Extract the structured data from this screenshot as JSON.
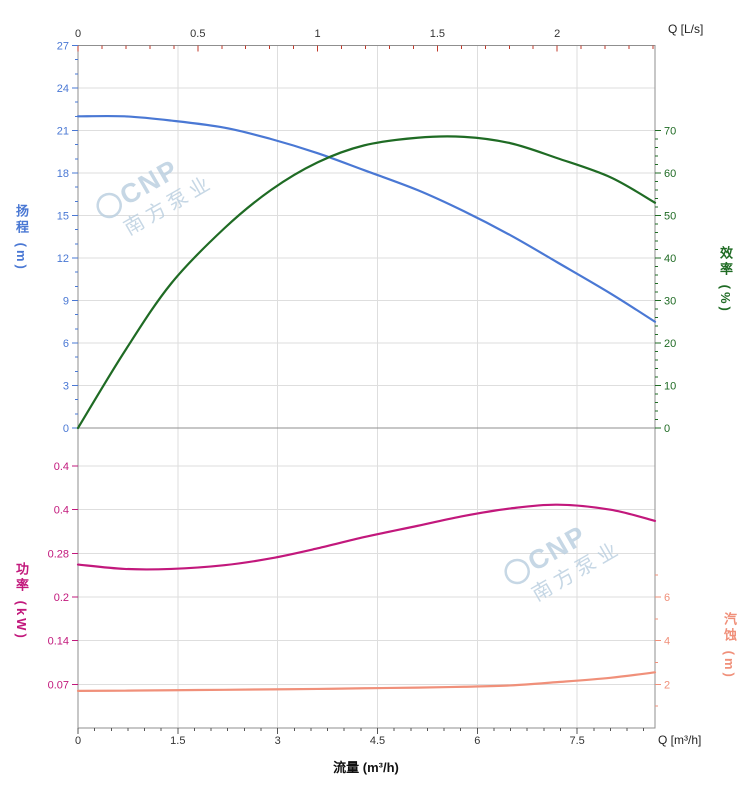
{
  "watermark": {
    "brand": "CNP",
    "name": "南方泵业"
  },
  "colors": {
    "head": "#4a78d4",
    "eff": "#1f6b24",
    "power": "#c2187c",
    "npsh": "#f0907a",
    "watermark": "#b9cedf",
    "grid": "#dedede",
    "axis": "#8f8f8f",
    "top_tick": "#c0392b",
    "bottom_tick": "#555555",
    "text": "#333333"
  },
  "axes": {
    "top": {
      "label": "Q [L/s]",
      "ticks": [
        0,
        0.5,
        1,
        1.5,
        2
      ]
    },
    "bottom": {
      "label": "Q [m³/h]",
      "title": "流量 (m³/h)",
      "ticks": [
        0,
        1.5,
        3,
        4.5,
        6,
        7.5
      ]
    },
    "head": {
      "title": "扬程 (m)",
      "ticks": [
        0,
        3,
        6,
        9,
        12,
        15,
        18,
        21,
        24,
        27
      ],
      "range": [
        0,
        27
      ]
    },
    "eff": {
      "title": "效率 (%)",
      "ticks": [
        0,
        10,
        20,
        30,
        40,
        50,
        60,
        70
      ],
      "range": [
        0,
        70
      ]
    },
    "power": {
      "title": "功率 (kW)",
      "grid": {
        "values": [
          0.42,
          0.35,
          0.28,
          0.21,
          0.14,
          0.07
        ],
        "labels": [
          "0.4",
          "0.4",
          "0.28",
          "0.2",
          "0.14",
          "0.07"
        ]
      },
      "range": [
        0,
        0.42
      ]
    },
    "npsh": {
      "title": "汽蚀 (m)",
      "ticks": [
        2,
        4,
        6
      ],
      "range": [
        0,
        12
      ]
    }
  },
  "chart_data": [
    {
      "type": "line",
      "xlabel": "流量 (m³/h)",
      "x_top_axis": "Q [L/s]",
      "xlim": [
        0,
        8.67
      ],
      "x": [
        0,
        0.7,
        1.4,
        2.2,
        2.9,
        3.6,
        4.3,
        5.1,
        5.8,
        6.5,
        7.2,
        8.0,
        8.67
      ],
      "series": [
        {
          "name": "扬程",
          "unit": "m",
          "axis": "left",
          "ylim": [
            0,
            27
          ],
          "color": "#4a78d4",
          "values": [
            22,
            22,
            21.7,
            21.2,
            20.4,
            19.4,
            18.2,
            16.8,
            15.3,
            13.6,
            11.7,
            9.5,
            7.5
          ]
        },
        {
          "name": "效率",
          "unit": "%",
          "axis": "right",
          "ylim": [
            0,
            70
          ],
          "color": "#1f6b24",
          "values": [
            0,
            18,
            34,
            47,
            56,
            62.5,
            66.5,
            68.3,
            68.5,
            67,
            63.5,
            59,
            53
          ]
        }
      ],
      "grid": true,
      "legend": "none"
    },
    {
      "type": "line",
      "xlabel": "流量 (m³/h)",
      "xlim": [
        0,
        8.67
      ],
      "x": [
        0,
        0.7,
        1.4,
        2.2,
        2.9,
        3.6,
        4.3,
        5.1,
        5.8,
        6.5,
        7.2,
        8.0,
        8.67
      ],
      "series": [
        {
          "name": "功率",
          "unit": "kW",
          "axis": "left",
          "ylim": [
            0,
            0.42
          ],
          "color": "#c2187c",
          "values": [
            0.262,
            0.255,
            0.255,
            0.261,
            0.272,
            0.288,
            0.306,
            0.324,
            0.34,
            0.352,
            0.358,
            0.35,
            0.332
          ]
        },
        {
          "name": "汽蚀",
          "unit": "m",
          "axis": "right",
          "ylim": [
            0,
            12
          ],
          "color": "#f0907a",
          "values": [
            1.7,
            1.71,
            1.73,
            1.75,
            1.77,
            1.79,
            1.82,
            1.85,
            1.89,
            1.95,
            2.1,
            2.3,
            2.55
          ]
        }
      ],
      "grid": true,
      "legend": "none"
    }
  ]
}
